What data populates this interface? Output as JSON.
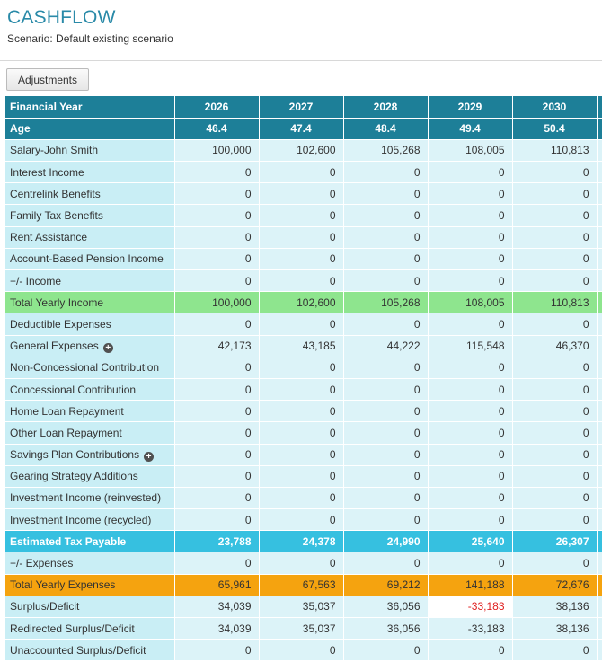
{
  "page": {
    "title": "CASHFLOW",
    "scenario": "Scenario: Default existing scenario",
    "adjustments_label": "Adjustments"
  },
  "colors": {
    "header": "#1d7f98",
    "row_label_bg": "#c9eef5",
    "row_value_bg": "#dcf3f8",
    "income_total": "#8ee58e",
    "tax": "#36c0e0",
    "expenses_total": "#f5a30f",
    "negative_alert": "#e02020"
  },
  "table": {
    "header_label": "Financial Year",
    "years": [
      "2026",
      "2027",
      "2028",
      "2029",
      "2030"
    ],
    "age_label": "Age",
    "ages": [
      "46.4",
      "47.4",
      "48.4",
      "49.4",
      "50.4"
    ],
    "rows": [
      {
        "label": "Salary-John Smith",
        "values": [
          "100,000",
          "102,600",
          "105,268",
          "108,005",
          "110,813"
        ]
      },
      {
        "label": "Interest Income",
        "values": [
          "0",
          "0",
          "0",
          "0",
          "0"
        ]
      },
      {
        "label": "Centrelink Benefits",
        "values": [
          "0",
          "0",
          "0",
          "0",
          "0"
        ]
      },
      {
        "label": "Family Tax Benefits",
        "values": [
          "0",
          "0",
          "0",
          "0",
          "0"
        ]
      },
      {
        "label": "Rent Assistance",
        "values": [
          "0",
          "0",
          "0",
          "0",
          "0"
        ]
      },
      {
        "label": "Account-Based Pension Income",
        "values": [
          "0",
          "0",
          "0",
          "0",
          "0"
        ]
      },
      {
        "label": "+/- Income",
        "values": [
          "0",
          "0",
          "0",
          "0",
          "0"
        ]
      },
      {
        "label": "Total Yearly Income",
        "values": [
          "100,000",
          "102,600",
          "105,268",
          "108,005",
          "110,813"
        ]
      },
      {
        "label": "Deductible Expenses",
        "values": [
          "0",
          "0",
          "0",
          "0",
          "0"
        ]
      },
      {
        "label": "General Expenses",
        "values": [
          "42,173",
          "43,185",
          "44,222",
          "115,548",
          "46,370"
        ],
        "icon": "plus-circle-icon"
      },
      {
        "label": "Non-Concessional Contribution",
        "values": [
          "0",
          "0",
          "0",
          "0",
          "0"
        ]
      },
      {
        "label": "Concessional Contribution",
        "values": [
          "0",
          "0",
          "0",
          "0",
          "0"
        ]
      },
      {
        "label": "Home Loan Repayment",
        "values": [
          "0",
          "0",
          "0",
          "0",
          "0"
        ]
      },
      {
        "label": "Other Loan Repayment",
        "values": [
          "0",
          "0",
          "0",
          "0",
          "0"
        ]
      },
      {
        "label": "Savings Plan Contributions",
        "values": [
          "0",
          "0",
          "0",
          "0",
          "0"
        ],
        "icon": "plus-circle-icon"
      },
      {
        "label": "Gearing Strategy Additions",
        "values": [
          "0",
          "0",
          "0",
          "0",
          "0"
        ]
      },
      {
        "label": "Investment Income (reinvested)",
        "values": [
          "0",
          "0",
          "0",
          "0",
          "0"
        ]
      },
      {
        "label": "Investment Income (recycled)",
        "values": [
          "0",
          "0",
          "0",
          "0",
          "0"
        ]
      },
      {
        "label": "Estimated Tax Payable",
        "values": [
          "23,788",
          "24,378",
          "24,990",
          "25,640",
          "26,307"
        ]
      },
      {
        "label": "+/- Expenses",
        "values": [
          "0",
          "0",
          "0",
          "0",
          "0"
        ]
      },
      {
        "label": "Total Yearly Expenses",
        "values": [
          "65,961",
          "67,563",
          "69,212",
          "141,188",
          "72,676"
        ]
      },
      {
        "label": "Surplus/Deficit",
        "values": [
          "34,039",
          "35,037",
          "36,056",
          "-33,183",
          "38,136"
        ]
      },
      {
        "label": "Redirected Surplus/Deficit",
        "values": [
          "34,039",
          "35,037",
          "36,056",
          "-33,183",
          "38,136"
        ]
      },
      {
        "label": "Unaccounted Surplus/Deficit",
        "values": [
          "0",
          "0",
          "0",
          "0",
          "0"
        ]
      }
    ]
  }
}
